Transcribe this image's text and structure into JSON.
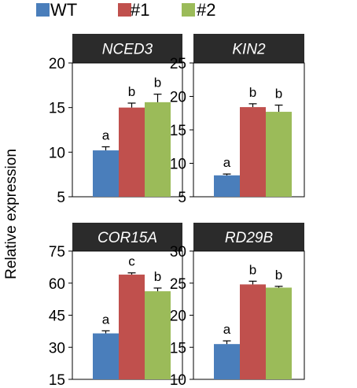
{
  "legend": [
    {
      "name": "WT",
      "color": "#4a7ebb"
    },
    {
      "name": "#1",
      "color": "#c0504d"
    },
    {
      "name": "#2",
      "color": "#9bbb59"
    }
  ],
  "ylabel": "Relative expression",
  "chart_data": [
    {
      "type": "bar",
      "title": "NCED3",
      "categories": [
        "WT",
        "#1",
        "#2"
      ],
      "values": [
        10.2,
        15.0,
        15.6
      ],
      "errors": [
        0.4,
        0.5,
        0.9
      ],
      "significance": [
        "a",
        "b",
        "b"
      ],
      "ylim": [
        5,
        20
      ],
      "yticks": [
        5,
        10,
        15,
        20
      ],
      "ylabel": "Relative expression"
    },
    {
      "type": "bar",
      "title": "KIN2",
      "categories": [
        "WT",
        "#1",
        "#2"
      ],
      "values": [
        8.2,
        18.4,
        17.7
      ],
      "errors": [
        0.2,
        0.5,
        1.0
      ],
      "significance": [
        "a",
        "b",
        "b"
      ],
      "ylim": [
        5,
        25
      ],
      "yticks": [
        5,
        10,
        15,
        20,
        25
      ],
      "ylabel": "Relative expression"
    },
    {
      "type": "bar",
      "title": "COR15A",
      "categories": [
        "WT",
        "#1",
        "#2"
      ],
      "values": [
        36.5,
        64.0,
        56.2
      ],
      "errors": [
        1.2,
        0.8,
        1.5
      ],
      "significance": [
        "a",
        "c",
        "b"
      ],
      "ylim": [
        15,
        75
      ],
      "yticks": [
        15,
        30,
        45,
        60,
        75
      ],
      "ylabel": "Relative expression"
    },
    {
      "type": "bar",
      "title": "RD29B",
      "categories": [
        "WT",
        "#1",
        "#2"
      ],
      "values": [
        15.5,
        24.8,
        24.3
      ],
      "errors": [
        0.5,
        0.5,
        0.2
      ],
      "significance": [
        "a",
        "b",
        "b"
      ],
      "ylim": [
        10,
        30
      ],
      "yticks": [
        10,
        15,
        20,
        25,
        30
      ],
      "ylabel": "Relative expression"
    }
  ]
}
